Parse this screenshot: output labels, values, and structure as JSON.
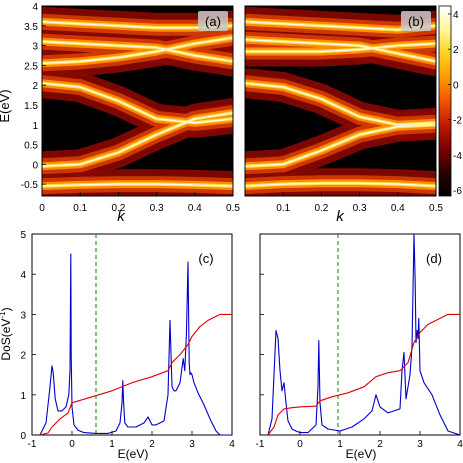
{
  "figure": {
    "colorbar": {
      "ticks": [
        "4",
        "2",
        "0",
        "-2",
        "-4",
        "-6"
      ],
      "colors": [
        "#ffffff",
        "#fff79a",
        "#ffd21e",
        "#ff9a00",
        "#f25400",
        "#c21a00",
        "#7c0000",
        "#2a0000",
        "#000000"
      ]
    },
    "dos_colors": {
      "dos": "#0000cc",
      "integrated": "#dd0000",
      "fermi": "#008800"
    }
  },
  "chart_data": [
    {
      "type": "heatmap",
      "panel_label": "(a)",
      "xlabel": "k",
      "ylabel": "E(eV)",
      "xlim": [
        0,
        0.5
      ],
      "ylim": [
        -0.8,
        4.0
      ],
      "xticks": [
        "0",
        "0.1",
        "0.2",
        "0.3",
        "0.4",
        "0.5"
      ],
      "yticks": [
        "4",
        "3.5",
        "3",
        "2.5",
        "2",
        "1.5",
        "1",
        "0.5",
        "0",
        "-0.5"
      ],
      "bands": [
        {
          "k": [
            0,
            0.1,
            0.2,
            0.3,
            0.4,
            0.5
          ],
          "E": [
            -0.55,
            -0.52,
            -0.5,
            -0.5,
            -0.52,
            -0.55
          ]
        },
        {
          "k": [
            0,
            0.1,
            0.2,
            0.3,
            0.4,
            0.5
          ],
          "E": [
            -0.05,
            0.0,
            0.3,
            0.75,
            1.15,
            1.3
          ]
        },
        {
          "k": [
            0,
            0.1,
            0.2,
            0.3,
            0.4,
            0.5
          ],
          "E": [
            2.05,
            1.95,
            1.6,
            1.15,
            1.05,
            1.15
          ]
        },
        {
          "k": [
            0,
            0.1,
            0.2,
            0.3,
            0.4,
            0.5
          ],
          "E": [
            2.55,
            2.6,
            2.7,
            2.85,
            3.05,
            3.2
          ]
        },
        {
          "k": [
            0,
            0.1,
            0.2,
            0.3,
            0.4,
            0.5
          ],
          "E": [
            3.1,
            3.05,
            3.0,
            2.95,
            2.75,
            2.6
          ]
        },
        {
          "k": [
            0,
            0.1,
            0.2,
            0.3,
            0.4,
            0.5
          ],
          "E": [
            3.6,
            3.55,
            3.5,
            3.45,
            3.45,
            3.5
          ]
        }
      ]
    },
    {
      "type": "heatmap",
      "panel_label": "(b)",
      "xlabel": "k",
      "xlim": [
        0,
        0.5
      ],
      "ylim": [
        -0.8,
        4.0
      ],
      "xticks": [
        "0.1",
        "0.2",
        "0.3",
        "0.4",
        "0.5"
      ],
      "bands": [
        {
          "k": [
            0,
            0.1,
            0.2,
            0.3,
            0.4,
            0.5
          ],
          "E": [
            -0.55,
            -0.5,
            -0.48,
            -0.48,
            -0.5,
            -0.55
          ]
        },
        {
          "k": [
            0,
            0.1,
            0.2,
            0.3,
            0.4,
            0.5
          ],
          "E": [
            -0.05,
            0.0,
            0.35,
            0.75,
            0.95,
            1.0
          ]
        },
        {
          "k": [
            0,
            0.1,
            0.2,
            0.3,
            0.4,
            0.5
          ],
          "E": [
            2.05,
            1.95,
            1.65,
            1.2,
            1.0,
            1.05
          ]
        },
        {
          "k": [
            0,
            0.1,
            0.2,
            0.3,
            0.4,
            0.5
          ],
          "E": [
            2.85,
            2.85,
            2.85,
            2.9,
            3.0,
            3.05
          ]
        },
        {
          "k": [
            0,
            0.1,
            0.2,
            0.3,
            0.4,
            0.5
          ],
          "E": [
            3.15,
            3.1,
            3.05,
            3.0,
            2.8,
            2.6
          ]
        },
        {
          "k": [
            0,
            0.1,
            0.2,
            0.3,
            0.4,
            0.5
          ],
          "E": [
            3.6,
            3.55,
            3.5,
            3.45,
            3.4,
            3.5
          ]
        }
      ]
    },
    {
      "type": "line",
      "panel_label": "(c)",
      "xlabel": "E(eV)",
      "ylabel": "DoS(eV",
      "ylabel_sup": "-1",
      "ylabel_close": ")",
      "xlim": [
        -1,
        4
      ],
      "ylim": [
        0,
        5
      ],
      "xticks": [
        "-1",
        "0",
        "1",
        "2",
        "3",
        "4"
      ],
      "yticks": [
        "0",
        "1",
        "2",
        "3",
        "4",
        "5"
      ],
      "fermi_level": 0.6,
      "series": [
        {
          "x": [
            -0.8,
            -0.65,
            -0.55,
            -0.5,
            -0.47,
            -0.42,
            -0.35,
            -0.25,
            -0.15,
            -0.08,
            -0.05,
            -0.03,
            -0.02,
            0.0,
            0.05,
            0.15,
            0.3,
            0.6,
            0.9,
            1.1,
            1.2,
            1.25,
            1.27,
            1.29,
            1.32,
            1.4,
            1.6,
            1.8,
            1.9,
            2.0,
            2.1,
            2.3,
            2.4,
            2.45,
            2.5,
            2.55,
            2.6,
            2.7,
            2.78,
            2.82,
            2.86,
            2.9,
            2.93,
            2.95,
            2.97,
            3.0,
            3.05,
            3.15,
            3.3,
            3.45,
            3.6,
            3.7,
            4.0
          ],
          "y": [
            0.0,
            0.3,
            1.2,
            1.72,
            1.55,
            0.9,
            0.6,
            0.6,
            0.7,
            1.0,
            1.6,
            4.5,
            2.0,
            0.7,
            0.25,
            0.12,
            0.06,
            0.04,
            0.04,
            0.1,
            0.3,
            0.8,
            1.35,
            0.8,
            0.3,
            0.2,
            0.2,
            0.3,
            0.45,
            0.25,
            0.25,
            0.35,
            1.0,
            2.85,
            1.2,
            1.1,
            1.1,
            1.3,
            1.9,
            1.6,
            2.5,
            4.3,
            1.8,
            1.5,
            1.55,
            1.5,
            1.3,
            1.05,
            0.75,
            0.4,
            0.1,
            0.0,
            0.0
          ]
        },
        {
          "x": [
            -0.8,
            -0.6,
            -0.5,
            -0.3,
            -0.1,
            0.0,
            0.5,
            1.0,
            1.5,
            2.0,
            2.4,
            2.5,
            2.7,
            2.9,
            3.0,
            3.2,
            3.4,
            3.6,
            3.7,
            4.0
          ],
          "y": [
            0.0,
            0.05,
            0.2,
            0.4,
            0.55,
            0.8,
            0.95,
            1.1,
            1.3,
            1.45,
            1.6,
            1.8,
            2.0,
            2.25,
            2.45,
            2.7,
            2.85,
            2.95,
            3.0,
            3.0
          ]
        }
      ]
    },
    {
      "type": "line",
      "panel_label": "(d)",
      "xlabel": "E(eV)",
      "xlim": [
        -1,
        4
      ],
      "ylim": [
        0,
        5
      ],
      "xticks": [
        "-1",
        "0",
        "1",
        "2",
        "3",
        "4"
      ],
      "fermi_level": 0.95,
      "series": [
        {
          "x": [
            -0.8,
            -0.7,
            -0.65,
            -0.6,
            -0.55,
            -0.5,
            -0.45,
            -0.4,
            -0.35,
            -0.3,
            -0.2,
            -0.1,
            0.0,
            0.2,
            0.4,
            0.45,
            0.47,
            0.5,
            0.55,
            0.7,
            1.0,
            1.3,
            1.6,
            1.8,
            1.9,
            2.0,
            2.2,
            2.5,
            2.55,
            2.6,
            2.65,
            2.7,
            2.75,
            2.8,
            2.85,
            2.88,
            2.9,
            2.93,
            2.95,
            2.97,
            3.0,
            3.1,
            3.3,
            3.5,
            3.7,
            4.0
          ],
          "y": [
            0.0,
            0.4,
            1.5,
            2.6,
            2.4,
            1.6,
            1.1,
            1.3,
            0.8,
            0.35,
            0.15,
            0.1,
            0.06,
            0.06,
            0.25,
            1.2,
            2.35,
            0.8,
            0.25,
            0.15,
            0.1,
            0.2,
            0.4,
            0.6,
            1.0,
            0.7,
            0.55,
            0.65,
            1.6,
            2.05,
            0.9,
            1.2,
            1.5,
            2.2,
            5.0,
            3.8,
            2.3,
            2.6,
            2.4,
            2.9,
            1.6,
            1.3,
            1.0,
            0.5,
            0.1,
            0.0
          ]
        },
        {
          "x": [
            -0.8,
            -0.65,
            -0.55,
            -0.4,
            -0.2,
            0.0,
            0.4,
            0.5,
            0.8,
            1.2,
            1.6,
            1.9,
            2.2,
            2.5,
            2.7,
            2.85,
            3.0,
            3.2,
            3.5,
            3.7,
            4.0
          ],
          "y": [
            0.0,
            0.2,
            0.5,
            0.65,
            0.68,
            0.7,
            0.72,
            0.85,
            0.95,
            1.05,
            1.2,
            1.45,
            1.55,
            1.6,
            1.8,
            2.3,
            2.55,
            2.75,
            2.9,
            3.0,
            3.0
          ]
        }
      ]
    }
  ]
}
